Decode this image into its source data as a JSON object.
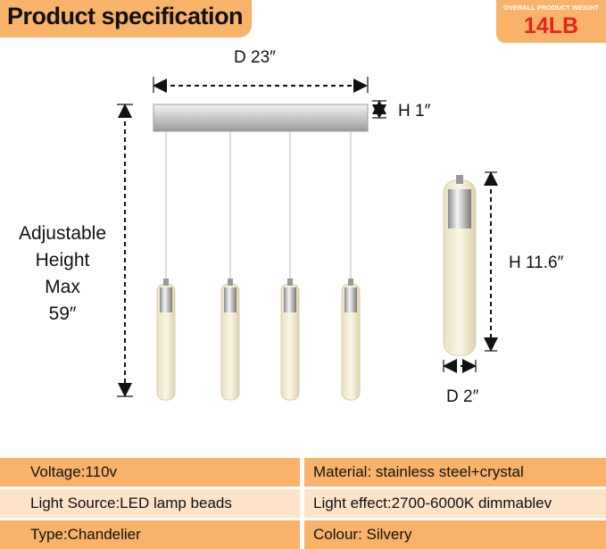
{
  "header": {
    "title": "Product specification",
    "weight_label": "OVERALL PRODUCT WEIGHT",
    "weight": "14LB"
  },
  "dimensions": {
    "width": "D 23″",
    "bar_height": "H 1″",
    "adjustable": [
      "Adjustable",
      "Height",
      "Max",
      "59″"
    ],
    "pendant_height": "H 11.6″",
    "pendant_diameter": "D 2″"
  },
  "table": {
    "rows": [
      [
        "Voltage:110v",
        "Material: stainless steel+crystal"
      ],
      [
        "Light Source:LED lamp beads",
        "Light effect:2700-6000K dimmablev"
      ],
      [
        "Type:Chandelier",
        "Colour: Silvery"
      ]
    ]
  }
}
